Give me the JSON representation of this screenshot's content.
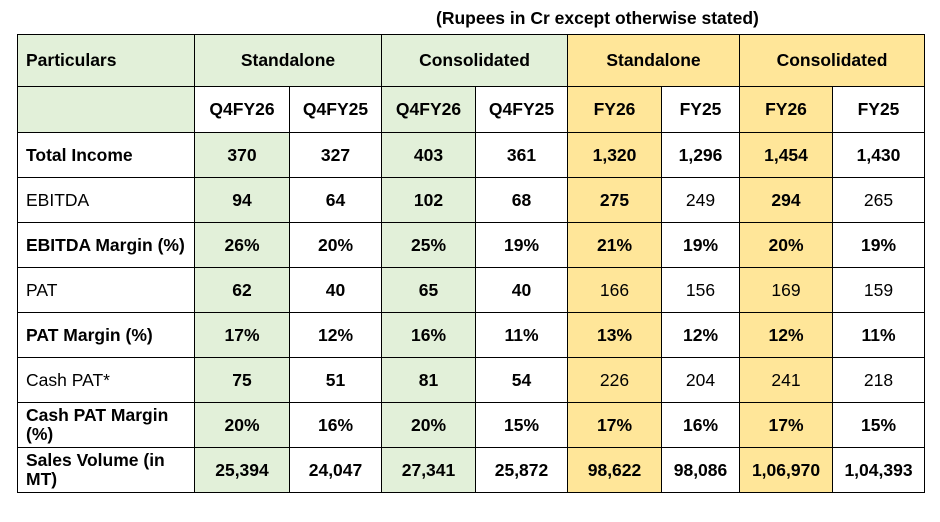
{
  "note": "(Rupees in Cr except otherwise stated)",
  "header": {
    "particulars": "Particulars",
    "groups": [
      "Standalone",
      "Consolidated",
      "Standalone",
      "Consolidated"
    ],
    "periods": [
      "Q4FY26",
      "Q4FY25",
      "Q4FY26",
      "Q4FY25",
      "FY26",
      "FY25",
      "FY26",
      "FY25"
    ]
  },
  "rows": [
    {
      "label": "Total Income",
      "values": [
        "370",
        "327",
        "403",
        "361",
        "1,320",
        "1,296",
        "1,454",
        "1,430"
      ]
    },
    {
      "label": "EBITDA",
      "values": [
        "94",
        "64",
        "102",
        "68",
        "275",
        "249",
        "294",
        "265"
      ]
    },
    {
      "label": "EBITDA Margin (%)",
      "values": [
        "26%",
        "20%",
        "25%",
        "19%",
        "21%",
        "19%",
        "20%",
        "19%"
      ]
    },
    {
      "label": "PAT",
      "values": [
        "62",
        "40",
        "65",
        "40",
        "166",
        "156",
        "169",
        "159"
      ]
    },
    {
      "label": "PAT Margin (%)",
      "values": [
        "17%",
        "12%",
        "16%",
        "11%",
        "13%",
        "12%",
        "12%",
        "11%"
      ]
    },
    {
      "label": "Cash PAT*",
      "values": [
        "75",
        "51",
        "81",
        "54",
        "226",
        "204",
        "241",
        "218"
      ]
    },
    {
      "label": "Cash PAT Margin (%)",
      "values": [
        "20%",
        "16%",
        "20%",
        "15%",
        "17%",
        "16%",
        "17%",
        "15%"
      ]
    },
    {
      "label": "Sales Volume (in MT)",
      "values": [
        "25,394",
        "24,047",
        "27,341",
        "25,872",
        "98,622",
        "98,086",
        "1,06,970",
        "1,04,393"
      ]
    }
  ],
  "colors": {
    "green": "#e2f0d9",
    "yellow": "#ffe699"
  }
}
